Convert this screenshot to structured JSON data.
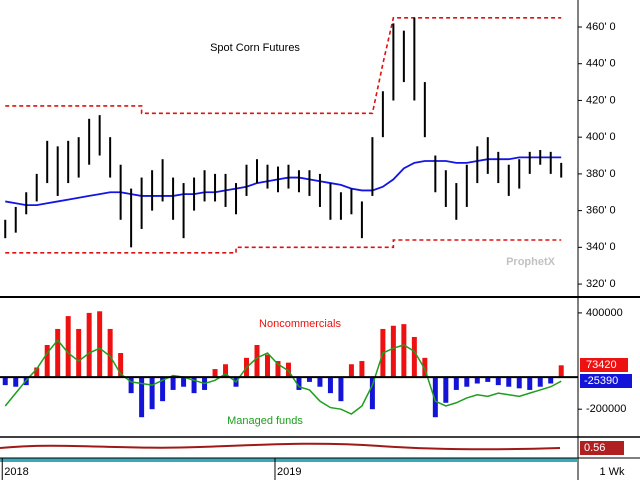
{
  "chart_data": [
    {
      "type": "ohlc",
      "title": "Spot Corn Futures",
      "x": [
        0,
        2,
        4,
        6,
        8,
        10,
        12,
        14,
        16,
        18,
        20,
        22,
        24,
        26,
        28,
        30,
        32,
        34,
        36,
        38,
        40,
        42,
        44,
        46,
        48,
        50,
        52,
        54,
        56,
        58,
        60,
        62,
        64,
        66,
        68,
        70,
        72,
        74,
        76,
        78,
        80,
        82,
        84,
        86,
        88,
        90,
        92,
        94,
        96,
        98,
        100,
        102,
        104,
        106
      ],
      "high": [
        355,
        362,
        370,
        380,
        398,
        395,
        398,
        400,
        410,
        412,
        400,
        385,
        372,
        378,
        382,
        388,
        378,
        375,
        378,
        382,
        380,
        380,
        375,
        385,
        388,
        385,
        384,
        385,
        382,
        382,
        380,
        375,
        370,
        372,
        365,
        400,
        425,
        462,
        458,
        465,
        430,
        390,
        382,
        375,
        385,
        395,
        400,
        392,
        385,
        388,
        392,
        393,
        392,
        386
      ],
      "low": [
        345,
        348,
        358,
        365,
        375,
        368,
        375,
        378,
        385,
        390,
        378,
        355,
        340,
        350,
        360,
        365,
        355,
        345,
        360,
        365,
        365,
        362,
        358,
        368,
        375,
        372,
        370,
        372,
        370,
        368,
        362,
        355,
        355,
        358,
        345,
        368,
        400,
        420,
        430,
        420,
        400,
        370,
        362,
        355,
        362,
        375,
        380,
        375,
        368,
        372,
        380,
        385,
        380,
        378
      ],
      "color": "#000000",
      "ma": {
        "color": "#1414e6",
        "values": [
          365,
          364,
          363,
          363,
          364,
          365,
          366,
          367,
          368,
          369,
          370,
          370,
          369,
          368,
          368,
          368,
          368,
          369,
          369,
          370,
          370,
          371,
          372,
          373,
          375,
          376,
          377,
          378,
          378,
          377,
          376,
          375,
          374,
          372,
          371,
          371,
          373,
          377,
          383,
          386,
          387,
          387,
          387,
          386,
          386,
          387,
          388,
          388,
          388,
          389,
          389,
          389,
          389,
          389
        ]
      },
      "upper_band": {
        "color": "#dd1111",
        "x": [
          0,
          26,
          26,
          68,
          70,
          72,
          74,
          106
        ],
        "values": [
          417,
          417,
          413,
          413,
          413,
          440,
          465,
          465
        ]
      },
      "lower_band": {
        "color": "#dd1111",
        "x": [
          0,
          44,
          44,
          74,
          74,
          106
        ],
        "values": [
          337,
          337,
          340,
          340,
          344,
          344
        ]
      },
      "xlim": [
        -1,
        109.2
      ],
      "ylim": [
        313.5,
        474.7
      ],
      "xticks": [
        {
          "value": 0,
          "label": "2018"
        },
        {
          "value": 52,
          "label": "2019"
        }
      ],
      "yticks": [
        {
          "value": 320,
          "label": "320' 0"
        },
        {
          "value": 340,
          "label": "340' 0"
        },
        {
          "value": 360,
          "label": "360' 0"
        },
        {
          "value": 380,
          "label": "380' 0"
        },
        {
          "value": 400,
          "label": "400' 0"
        },
        {
          "value": 420,
          "label": "420' 0"
        },
        {
          "value": 440,
          "label": "440' 0"
        },
        {
          "value": 460,
          "label": "460' 0"
        }
      ]
    },
    {
      "type": "bar",
      "x": [
        0,
        2,
        4,
        6,
        8,
        10,
        12,
        14,
        16,
        18,
        20,
        22,
        24,
        26,
        28,
        30,
        32,
        34,
        36,
        38,
        40,
        42,
        44,
        46,
        48,
        50,
        52,
        54,
        56,
        58,
        60,
        62,
        64,
        66,
        68,
        70,
        72,
        74,
        76,
        78,
        80,
        82,
        84,
        86,
        88,
        90,
        92,
        94,
        96,
        98,
        100,
        102,
        104,
        106
      ],
      "series": [
        {
          "name": "Noncommercials",
          "color": "#ee1111",
          "negative_color": "#1414d8",
          "values": [
            -50000,
            -60000,
            -50000,
            60000,
            200000,
            300000,
            380000,
            300000,
            400000,
            410000,
            300000,
            150000,
            -100000,
            -250000,
            -200000,
            -150000,
            -80000,
            -60000,
            -100000,
            -80000,
            50000,
            80000,
            -60000,
            120000,
            200000,
            140000,
            100000,
            90000,
            -80000,
            -30000,
            -60000,
            -100000,
            -150000,
            80000,
            100000,
            -200000,
            300000,
            320000,
            330000,
            250000,
            120000,
            -250000,
            -160000,
            -80000,
            -60000,
            -40000,
            -30000,
            -50000,
            -60000,
            -70000,
            -80000,
            -60000,
            -40000,
            73420
          ]
        },
        {
          "name": "Managed funds",
          "type": "line",
          "color": "#1e9e1e",
          "label_color": "#1414d8",
          "values": [
            -180000,
            -100000,
            -20000,
            50000,
            150000,
            230000,
            150000,
            100000,
            150000,
            180000,
            130000,
            20000,
            -30000,
            -40000,
            -50000,
            -20000,
            10000,
            0,
            -20000,
            -40000,
            -20000,
            20000,
            -30000,
            60000,
            120000,
            150000,
            80000,
            40000,
            -60000,
            -80000,
            -150000,
            -190000,
            -200000,
            -230000,
            -180000,
            -50000,
            150000,
            180000,
            200000,
            160000,
            50000,
            -150000,
            -180000,
            -160000,
            -130000,
            -110000,
            -120000,
            -100000,
            -110000,
            -120000,
            -100000,
            -80000,
            -60000,
            -25390
          ]
        }
      ],
      "xlim": [
        -1,
        109.2
      ],
      "ylim": [
        -367000,
        492800
      ],
      "yticks": [
        -200000,
        400000
      ]
    }
  ],
  "indicator_label": "0.56",
  "timeframe": "1 Wk",
  "watermark": "ProphetX"
}
